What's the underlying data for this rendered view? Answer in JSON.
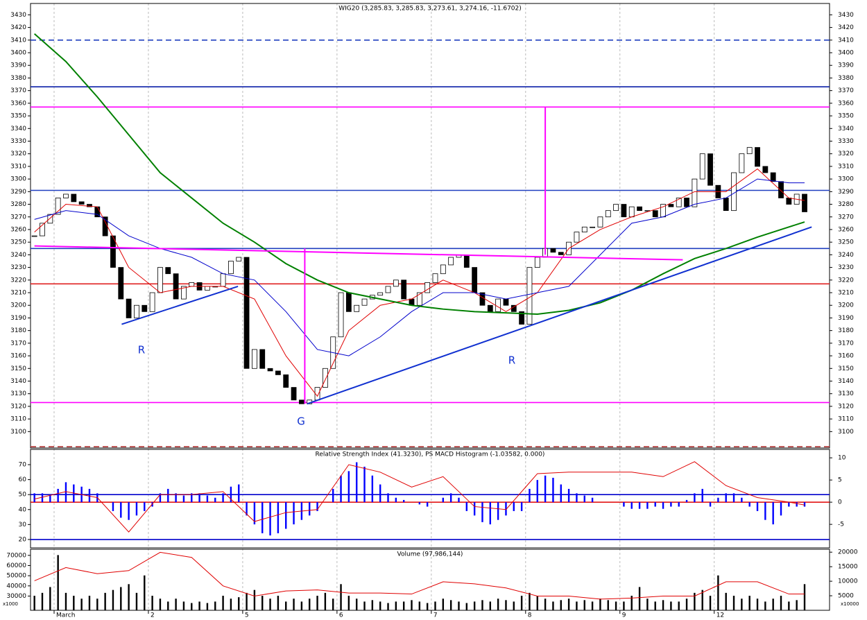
{
  "chart_data": [
    {
      "type": "candlestick",
      "title": "WIG20 (3,285.83, 3,285.83, 3,273.61, 3,274.16, -11.6702)",
      "categories": [
        null,
        null,
        null,
        "March",
        null,
        null,
        null,
        null,
        null,
        null,
        null,
        null,
        null,
        null,
        null,
        "2",
        null,
        null,
        null,
        null,
        null,
        null,
        null,
        null,
        null,
        null,
        null,
        "5",
        null,
        null,
        null,
        null,
        null,
        null,
        null,
        null,
        null,
        null,
        null,
        "6",
        null,
        null,
        null,
        null,
        null,
        null,
        null,
        null,
        null,
        null,
        null,
        "7",
        null,
        null,
        null,
        null,
        null,
        null,
        null,
        null,
        null,
        null,
        null,
        "8",
        null,
        null,
        null,
        null,
        null,
        null,
        null,
        null,
        null,
        null,
        null,
        "9",
        null,
        null,
        null,
        null,
        null,
        null,
        null,
        null,
        null,
        null,
        null,
        "12",
        null,
        null,
        null,
        null,
        null,
        null,
        null,
        null,
        null,
        null,
        null
      ],
      "values": [
        3255,
        3265,
        3272,
        3285,
        3288,
        3282,
        3280,
        3278,
        3270,
        3255,
        3230,
        3205,
        3190,
        3200,
        3195,
        3210,
        3230,
        3225,
        3205,
        3215,
        3218,
        3212,
        3215,
        3215,
        3225,
        3235,
        3238,
        3150,
        3165,
        3150,
        3148,
        3145,
        3135,
        3125,
        3122,
        3125,
        3135,
        3150,
        3175,
        3210,
        3195,
        3200,
        3205,
        3208,
        3210,
        3215,
        3220,
        3205,
        3200,
        3210,
        3218,
        3225,
        3232,
        3238,
        3240,
        3230,
        3210,
        3200,
        3195,
        3205,
        3200,
        3195,
        3185,
        3230,
        3238,
        3245,
        3242,
        3240,
        3250,
        3258,
        3262,
        3262,
        3270,
        3275,
        3280,
        3270,
        3278,
        3275,
        3275,
        3270,
        3280,
        3278,
        3285,
        3278,
        3300,
        3320,
        3295,
        3285,
        3275,
        3305,
        3320,
        3325,
        3310,
        3305,
        3298,
        3285,
        3280,
        3288,
        3274
      ],
      "series": [
        {
          "color": "#e00000",
          "x": [
            0,
            4,
            8,
            12,
            16,
            20,
            24,
            28,
            32,
            36,
            40,
            44,
            48,
            52,
            56,
            60,
            64,
            68,
            72,
            76,
            80,
            84,
            88,
            92,
            96,
            98
          ],
          "values": [
            3258,
            3280,
            3278,
            3230,
            3210,
            3215,
            3215,
            3205,
            3160,
            3128,
            3180,
            3200,
            3205,
            3220,
            3210,
            3195,
            3210,
            3245,
            3260,
            3270,
            3278,
            3290,
            3290,
            3308,
            3285,
            3283
          ]
        },
        {
          "color": "#0000cc",
          "x": [
            0,
            4,
            8,
            12,
            16,
            20,
            24,
            28,
            32,
            36,
            40,
            44,
            48,
            52,
            56,
            60,
            64,
            68,
            72,
            76,
            80,
            84,
            88,
            92,
            96,
            98
          ],
          "values": [
            3268,
            3275,
            3272,
            3255,
            3245,
            3238,
            3225,
            3220,
            3195,
            3165,
            3160,
            3175,
            3195,
            3210,
            3210,
            3205,
            3210,
            3215,
            3240,
            3265,
            3270,
            3280,
            3285,
            3300,
            3297,
            3297
          ]
        },
        {
          "color": "#008000",
          "x": [
            0,
            4,
            8,
            12,
            16,
            20,
            24,
            28,
            32,
            36,
            40,
            44,
            48,
            52,
            56,
            60,
            64,
            68,
            72,
            76,
            80,
            84,
            88,
            92,
            96,
            98
          ],
          "values": [
            3415,
            3393,
            3365,
            3335,
            3305,
            3285,
            3265,
            3250,
            3233,
            3220,
            3210,
            3205,
            3200,
            3197,
            3195,
            3194,
            3193,
            3196,
            3202,
            3212,
            3225,
            3237,
            3245,
            3254,
            3262,
            3266
          ]
        }
      ],
      "hlines": [
        {
          "value": 3410,
          "color": "#1f3fbf",
          "dash": true
        },
        {
          "value": 3373,
          "color": "#0b1fa8",
          "dash": false
        },
        {
          "value": 3357,
          "color": "#ff00ff",
          "dash": false
        },
        {
          "value": 3291,
          "color": "#1f3fbf",
          "dash": false
        },
        {
          "value": 3245,
          "color": "#1f3fbf",
          "dash": false
        },
        {
          "value": 3217,
          "color": "#e02020",
          "dash": false
        },
        {
          "value": 3123,
          "color": "#ff00ff",
          "dash": false
        },
        {
          "value": 3088,
          "color": "#b03030",
          "dash": true
        }
      ],
      "trendlines": [
        {
          "color": "#1030d0",
          "x": [
            34.7,
            98.9
          ],
          "values": [
            3122,
            3262
          ]
        },
        {
          "color": "#1030d0",
          "x": [
            11.1,
            25.9
          ],
          "values": [
            3185,
            3215
          ]
        },
        {
          "color": "#ff00ff",
          "x": [
            0,
            82.5
          ],
          "values": [
            3247,
            3236
          ]
        },
        {
          "color": "#ff00ff",
          "x": [
            34.4,
            34.4
          ],
          "values": [
            3245,
            3122
          ]
        },
        {
          "color": "#ff00ff",
          "x": [
            65,
            65
          ],
          "values": [
            3357,
            3240
          ]
        }
      ],
      "annotations": [
        "R",
        "G",
        "R"
      ],
      "ylim": [
        3087,
        3439
      ],
      "yticks": [
        3100,
        3110,
        3120,
        3130,
        3140,
        3150,
        3160,
        3170,
        3180,
        3190,
        3200,
        3210,
        3220,
        3230,
        3240,
        3250,
        3260,
        3270,
        3280,
        3290,
        3300,
        3310,
        3320,
        3330,
        3340,
        3350,
        3360,
        3370,
        3380,
        3390,
        3400,
        3410,
        3420,
        3430
      ],
      "grid": true
    },
    {
      "type": "bar",
      "title": "Relative Strength Index (41.3230), PS MACD Histogram (-1.03582, 0.000)",
      "series": [
        {
          "type": "bar",
          "axis": "y2",
          "color": "#0000ff",
          "values": [
            2,
            2,
            1.5,
            3,
            4.5,
            4,
            3.5,
            3,
            2,
            0,
            -2,
            -3.5,
            -4,
            -3,
            -2,
            -1,
            2,
            3,
            2,
            1.5,
            2,
            2,
            1.5,
            1,
            2,
            3.5,
            4,
            -3,
            -5,
            -7,
            -7.5,
            -7,
            -6,
            -5,
            -4,
            -3,
            -2,
            0,
            3,
            6,
            7,
            9,
            8,
            6,
            4,
            2,
            1,
            0.5,
            0,
            -0.5,
            -1,
            0,
            1,
            2,
            1,
            -2,
            -3,
            -4.5,
            -5,
            -4,
            -3,
            -2,
            -2,
            3,
            5,
            6,
            5.5,
            4,
            3,
            2,
            1.5,
            1,
            0,
            0,
            0,
            -1,
            -1.5,
            -1.5,
            -1.5,
            -1,
            -1.5,
            -1,
            -1,
            0.5,
            2,
            3,
            -1,
            1,
            2,
            2,
            1,
            -1,
            -2,
            -4,
            -5,
            -3,
            -1,
            -1,
            -1
          ]
        },
        {
          "type": "line",
          "color": "#e00000",
          "x": [
            0,
            4,
            8,
            12,
            16,
            20,
            24,
            28,
            32,
            36,
            40,
            44,
            48,
            52,
            56,
            60,
            64,
            68,
            72,
            76,
            80,
            84,
            88,
            92,
            96,
            98
          ],
          "values": [
            47,
            52,
            48,
            25,
            50,
            50,
            52,
            32,
            38,
            40,
            70,
            65,
            55,
            62,
            42,
            40,
            64,
            65,
            65,
            65,
            62,
            72,
            56,
            48,
            45,
            43
          ]
        }
      ],
      "hlines": [
        {
          "value": 50,
          "color": "#0000cc",
          "dash": false
        },
        {
          "value": 20,
          "color": "#0000cc",
          "dash": false
        },
        {
          "value": 0,
          "axis": "y2",
          "color": "#e00000",
          "dash": false
        }
      ],
      "ylim": [
        14.4,
        80.2
      ],
      "yticks": [
        20,
        30,
        40,
        50,
        60,
        70
      ],
      "y2lim": [
        -10.3,
        11.9
      ],
      "y2ticks": [
        -5,
        0,
        5,
        10
      ],
      "grid": true
    },
    {
      "type": "bar",
      "title": "Volume (97,986,144)",
      "ylabel": "x1000",
      "y2label": "x10000",
      "series": [
        {
          "type": "bar",
          "axis": "y2",
          "color": "#000000",
          "values": [
            5000,
            6000,
            8000,
            19000,
            6000,
            5000,
            4000,
            5000,
            4000,
            6000,
            7000,
            8000,
            9000,
            6000,
            12000,
            5000,
            4000,
            3000,
            4000,
            3000,
            2500,
            3000,
            2500,
            3000,
            5000,
            4000,
            4500,
            6000,
            7000,
            5000,
            4000,
            5000,
            3000,
            4000,
            3000,
            4000,
            5000,
            6000,
            4000,
            9000,
            5000,
            4000,
            3000,
            3500,
            3000,
            2500,
            3000,
            3000,
            3500,
            3000,
            2500,
            3000,
            4000,
            3500,
            3000,
            2500,
            3000,
            3500,
            3000,
            4000,
            3500,
            3000,
            5000,
            6000,
            5000,
            4000,
            3000,
            3500,
            4000,
            3000,
            3500,
            3000,
            4000,
            3500,
            3000,
            3000,
            5000,
            8000,
            4000,
            3000,
            3500,
            3000,
            3000,
            4000,
            6000,
            7000,
            5000,
            12000,
            6000,
            5000,
            4000,
            5000,
            4000,
            3000,
            4000,
            5000,
            3000,
            3500,
            9000
          ]
        },
        {
          "type": "line",
          "color": "#e00000",
          "x": [
            0,
            4,
            8,
            12,
            16,
            20,
            24,
            28,
            32,
            36,
            40,
            44,
            48,
            52,
            56,
            60,
            64,
            68,
            72,
            76,
            80,
            84,
            88,
            92,
            96,
            98
          ],
          "values": [
            45000,
            58000,
            52000,
            55000,
            73000,
            68000,
            40000,
            30000,
            35000,
            36000,
            33000,
            33000,
            32000,
            44000,
            42000,
            38000,
            30000,
            30000,
            27000,
            28000,
            30000,
            30000,
            44000,
            44000,
            32000,
            32000
          ]
        }
      ],
      "ylim": [
        16000,
        76000
      ],
      "yticks": [
        30000,
        40000,
        50000,
        60000,
        70000
      ],
      "y2lim": [
        0,
        21000
      ],
      "y2ticks": [
        5000,
        10000,
        15000,
        20000
      ],
      "grid": true
    }
  ]
}
